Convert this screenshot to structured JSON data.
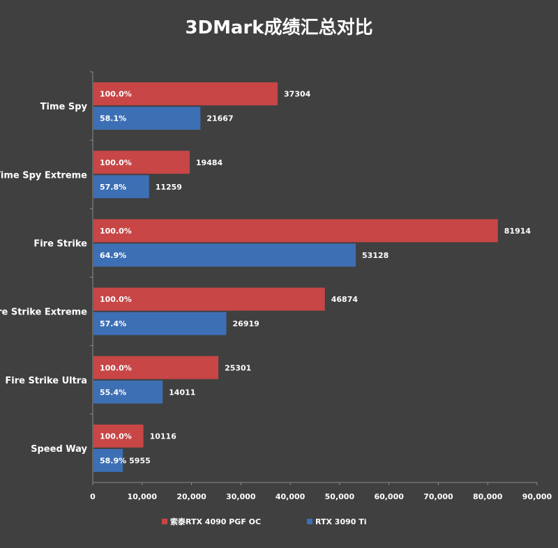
{
  "chart_data": {
    "type": "bar",
    "orientation": "horizontal",
    "title": "3DMark成绩汇总对比",
    "categories": [
      "Time Spy",
      "Time Spy Extreme",
      "Fire Strike",
      "Fire Strike Extreme",
      "Fire Strike Ultra",
      "Speed Way"
    ],
    "series": [
      {
        "name": "索泰RTX 4090 PGF OC",
        "color": "#c84646",
        "values": [
          37304,
          19484,
          81914,
          46874,
          25301,
          10116
        ],
        "pct_labels": [
          "100.0%",
          "100.0%",
          "100.0%",
          "100.0%",
          "100.0%",
          "100.0%"
        ]
      },
      {
        "name": "RTX 3090 Ti",
        "color": "#3d6fb4",
        "values": [
          21667,
          11259,
          53128,
          26919,
          14011,
          5955
        ],
        "pct_labels": [
          "58.1%",
          "57.8%",
          "64.9%",
          "57.4%",
          "55.4%",
          "58.9%"
        ]
      }
    ],
    "xlim": [
      0,
      90000
    ],
    "xticks": [
      0,
      10000,
      20000,
      30000,
      40000,
      50000,
      60000,
      70000,
      80000,
      90000
    ],
    "xtick_labels": [
      "0",
      "10,000",
      "20,000",
      "30,000",
      "40,000",
      "50,000",
      "60,000",
      "70,000",
      "80,000",
      "90,000"
    ],
    "grid": false,
    "legend_position": "bottom"
  }
}
